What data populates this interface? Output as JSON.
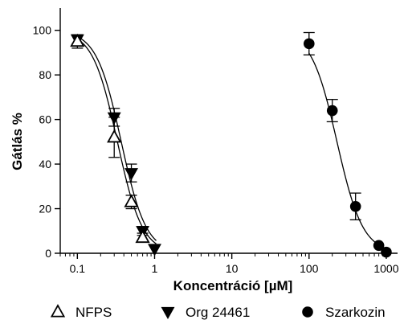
{
  "chart_data": {
    "type": "scatter",
    "xlabel": "Koncentráció [µM]",
    "ylabel": "Gátlás %",
    "xscale": "log",
    "xlim": [
      0.06,
      1400
    ],
    "ylim": [
      0,
      110
    ],
    "x_ticks": [
      0.1,
      1,
      10,
      100,
      1000
    ],
    "x_tick_labels": [
      "0.1",
      "1",
      "10",
      "100",
      "1000"
    ],
    "y_ticks": [
      0,
      20,
      40,
      60,
      80,
      100
    ],
    "y_tick_labels": [
      "0",
      "20",
      "40",
      "60",
      "80",
      "100"
    ],
    "grid": false,
    "legend_position": "bottom",
    "series": [
      {
        "name": "NFPS",
        "marker": "open-triangle-up",
        "color": "#000000",
        "points": [
          {
            "x": 0.1,
            "y": 95,
            "err": 3
          },
          {
            "x": 0.3,
            "y": 52,
            "err": 9
          },
          {
            "x": 0.5,
            "y": 23,
            "err": 3
          },
          {
            "x": 0.7,
            "y": 7,
            "err": 2
          }
        ],
        "fit": {
          "ic50": 0.33,
          "hill": 2.7
        }
      },
      {
        "name": "Org 24461",
        "marker": "filled-triangle-down",
        "color": "#000000",
        "points": [
          {
            "x": 0.1,
            "y": 96,
            "err": 2
          },
          {
            "x": 0.3,
            "y": 61,
            "err": 4
          },
          {
            "x": 0.5,
            "y": 36,
            "err": 4
          },
          {
            "x": 0.7,
            "y": 10,
            "err": 2
          },
          {
            "x": 1,
            "y": 2,
            "err": 0
          }
        ],
        "fit": {
          "ic50": 0.37,
          "hill": 2.7
        }
      },
      {
        "name": "Szarkozin",
        "marker": "filled-circle",
        "color": "#000000",
        "points": [
          {
            "x": 100,
            "y": 94,
            "err": 5
          },
          {
            "x": 200,
            "y": 64,
            "err": 5
          },
          {
            "x": 400,
            "y": 21,
            "err": 6
          },
          {
            "x": 800,
            "y": 3.5,
            "err": 0
          },
          {
            "x": 1000,
            "y": 0.5,
            "err": 0
          }
        ],
        "fit": {
          "ic50": 230,
          "hill": 2.6
        }
      }
    ]
  }
}
